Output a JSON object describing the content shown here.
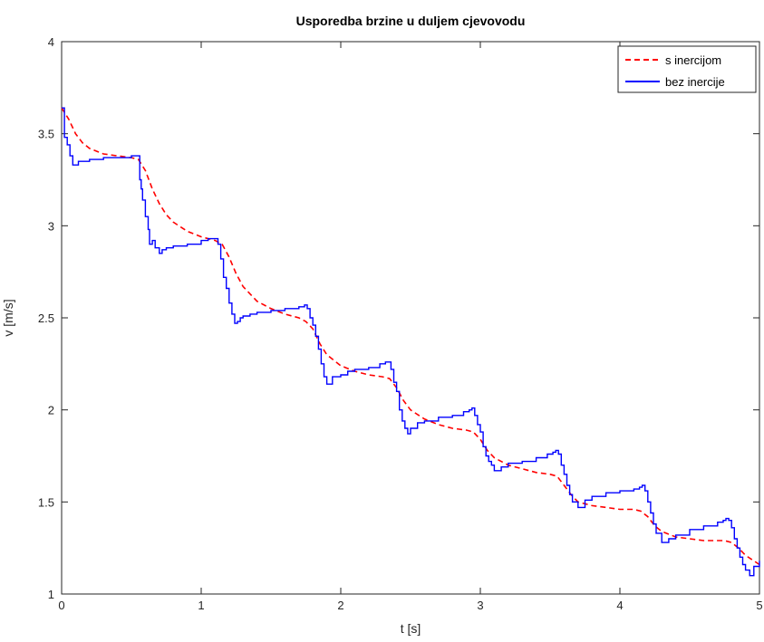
{
  "chart_data": {
    "type": "line",
    "title": "Usporedba brzine u duljem cjevovodu",
    "xlabel": "t [s]",
    "ylabel": "v [m/s]",
    "xlim": [
      0,
      5
    ],
    "ylim": [
      1,
      4
    ],
    "xticks": [
      0,
      1,
      2,
      3,
      4,
      5
    ],
    "xtick_labels": [
      "0",
      "1",
      "2",
      "3",
      "4",
      "5"
    ],
    "yticks": [
      1,
      1.5,
      2,
      2.5,
      3,
      3.5,
      4
    ],
    "ytick_labels": [
      "1",
      "1.5",
      "2",
      "2.5",
      "3",
      "3.5",
      "4"
    ],
    "grid": false,
    "legend_position": "top-right",
    "series": [
      {
        "name": "s inercijom",
        "color": "#ff0000",
        "style": "dashed",
        "x": [
          0.0,
          0.05,
          0.1,
          0.15,
          0.2,
          0.3,
          0.4,
          0.5,
          0.55,
          0.6,
          0.65,
          0.7,
          0.75,
          0.8,
          0.9,
          1.0,
          1.1,
          1.15,
          1.2,
          1.25,
          1.3,
          1.4,
          1.5,
          1.6,
          1.7,
          1.75,
          1.8,
          1.85,
          1.9,
          2.0,
          2.1,
          2.2,
          2.3,
          2.35,
          2.4,
          2.45,
          2.5,
          2.6,
          2.7,
          2.8,
          2.9,
          2.95,
          3.0,
          3.05,
          3.1,
          3.2,
          3.3,
          3.4,
          3.5,
          3.55,
          3.6,
          3.65,
          3.7,
          3.8,
          3.9,
          4.0,
          4.1,
          4.15,
          4.2,
          4.25,
          4.3,
          4.4,
          4.5,
          4.6,
          4.7,
          4.75,
          4.8,
          4.85,
          4.9,
          5.0
        ],
        "y": [
          3.64,
          3.58,
          3.5,
          3.45,
          3.42,
          3.39,
          3.38,
          3.37,
          3.36,
          3.3,
          3.2,
          3.12,
          3.06,
          3.02,
          2.97,
          2.94,
          2.92,
          2.9,
          2.83,
          2.74,
          2.67,
          2.59,
          2.55,
          2.52,
          2.5,
          2.48,
          2.44,
          2.36,
          2.3,
          2.24,
          2.21,
          2.19,
          2.18,
          2.17,
          2.12,
          2.05,
          2.0,
          1.95,
          1.92,
          1.9,
          1.89,
          1.88,
          1.84,
          1.78,
          1.74,
          1.7,
          1.68,
          1.66,
          1.65,
          1.64,
          1.59,
          1.54,
          1.5,
          1.48,
          1.47,
          1.46,
          1.46,
          1.45,
          1.42,
          1.37,
          1.34,
          1.31,
          1.3,
          1.29,
          1.29,
          1.29,
          1.28,
          1.25,
          1.21,
          1.16
        ]
      },
      {
        "name": "bez inercije",
        "color": "#0000ff",
        "style": "solid",
        "step": true,
        "x": [
          0.0,
          0.02,
          0.04,
          0.06,
          0.08,
          0.12,
          0.2,
          0.3,
          0.4,
          0.5,
          0.55,
          0.56,
          0.57,
          0.58,
          0.6,
          0.62,
          0.63,
          0.65,
          0.67,
          0.7,
          0.72,
          0.75,
          0.8,
          0.9,
          1.0,
          1.05,
          1.1,
          1.12,
          1.14,
          1.16,
          1.18,
          1.2,
          1.22,
          1.24,
          1.26,
          1.28,
          1.3,
          1.35,
          1.4,
          1.5,
          1.6,
          1.7,
          1.74,
          1.76,
          1.78,
          1.8,
          1.82,
          1.84,
          1.86,
          1.88,
          1.9,
          1.94,
          2.0,
          2.05,
          2.1,
          2.2,
          2.28,
          2.32,
          2.34,
          2.36,
          2.38,
          2.4,
          2.42,
          2.44,
          2.46,
          2.48,
          2.5,
          2.55,
          2.6,
          2.7,
          2.8,
          2.88,
          2.92,
          2.94,
          2.96,
          2.98,
          3.0,
          3.02,
          3.04,
          3.06,
          3.08,
          3.1,
          3.15,
          3.2,
          3.3,
          3.4,
          3.48,
          3.52,
          3.54,
          3.56,
          3.58,
          3.6,
          3.62,
          3.64,
          3.66,
          3.7,
          3.75,
          3.8,
          3.9,
          4.0,
          4.1,
          4.14,
          4.16,
          4.18,
          4.2,
          4.22,
          4.24,
          4.26,
          4.3,
          4.35,
          4.4,
          4.5,
          4.6,
          4.7,
          4.74,
          4.76,
          4.78,
          4.8,
          4.82,
          4.84,
          4.86,
          4.88,
          4.9,
          4.93,
          4.96,
          5.0
        ],
        "y": [
          3.64,
          3.48,
          3.44,
          3.38,
          3.33,
          3.35,
          3.36,
          3.37,
          3.37,
          3.38,
          3.38,
          3.25,
          3.2,
          3.14,
          3.05,
          2.98,
          2.9,
          2.92,
          2.88,
          2.85,
          2.87,
          2.88,
          2.89,
          2.9,
          2.92,
          2.93,
          2.93,
          2.9,
          2.82,
          2.72,
          2.66,
          2.58,
          2.52,
          2.47,
          2.48,
          2.5,
          2.51,
          2.52,
          2.53,
          2.54,
          2.55,
          2.56,
          2.57,
          2.55,
          2.5,
          2.46,
          2.4,
          2.33,
          2.25,
          2.18,
          2.14,
          2.18,
          2.19,
          2.21,
          2.22,
          2.23,
          2.25,
          2.26,
          2.26,
          2.22,
          2.15,
          2.1,
          2.0,
          1.94,
          1.9,
          1.87,
          1.9,
          1.93,
          1.94,
          1.96,
          1.97,
          1.99,
          2.0,
          2.01,
          1.97,
          1.92,
          1.88,
          1.8,
          1.75,
          1.72,
          1.7,
          1.67,
          1.69,
          1.71,
          1.72,
          1.74,
          1.76,
          1.77,
          1.78,
          1.76,
          1.7,
          1.65,
          1.59,
          1.54,
          1.5,
          1.47,
          1.51,
          1.53,
          1.55,
          1.56,
          1.57,
          1.58,
          1.59,
          1.56,
          1.5,
          1.44,
          1.38,
          1.33,
          1.28,
          1.3,
          1.32,
          1.35,
          1.37,
          1.39,
          1.4,
          1.41,
          1.4,
          1.36,
          1.3,
          1.25,
          1.2,
          1.16,
          1.13,
          1.1,
          1.15,
          1.18
        ]
      }
    ]
  }
}
